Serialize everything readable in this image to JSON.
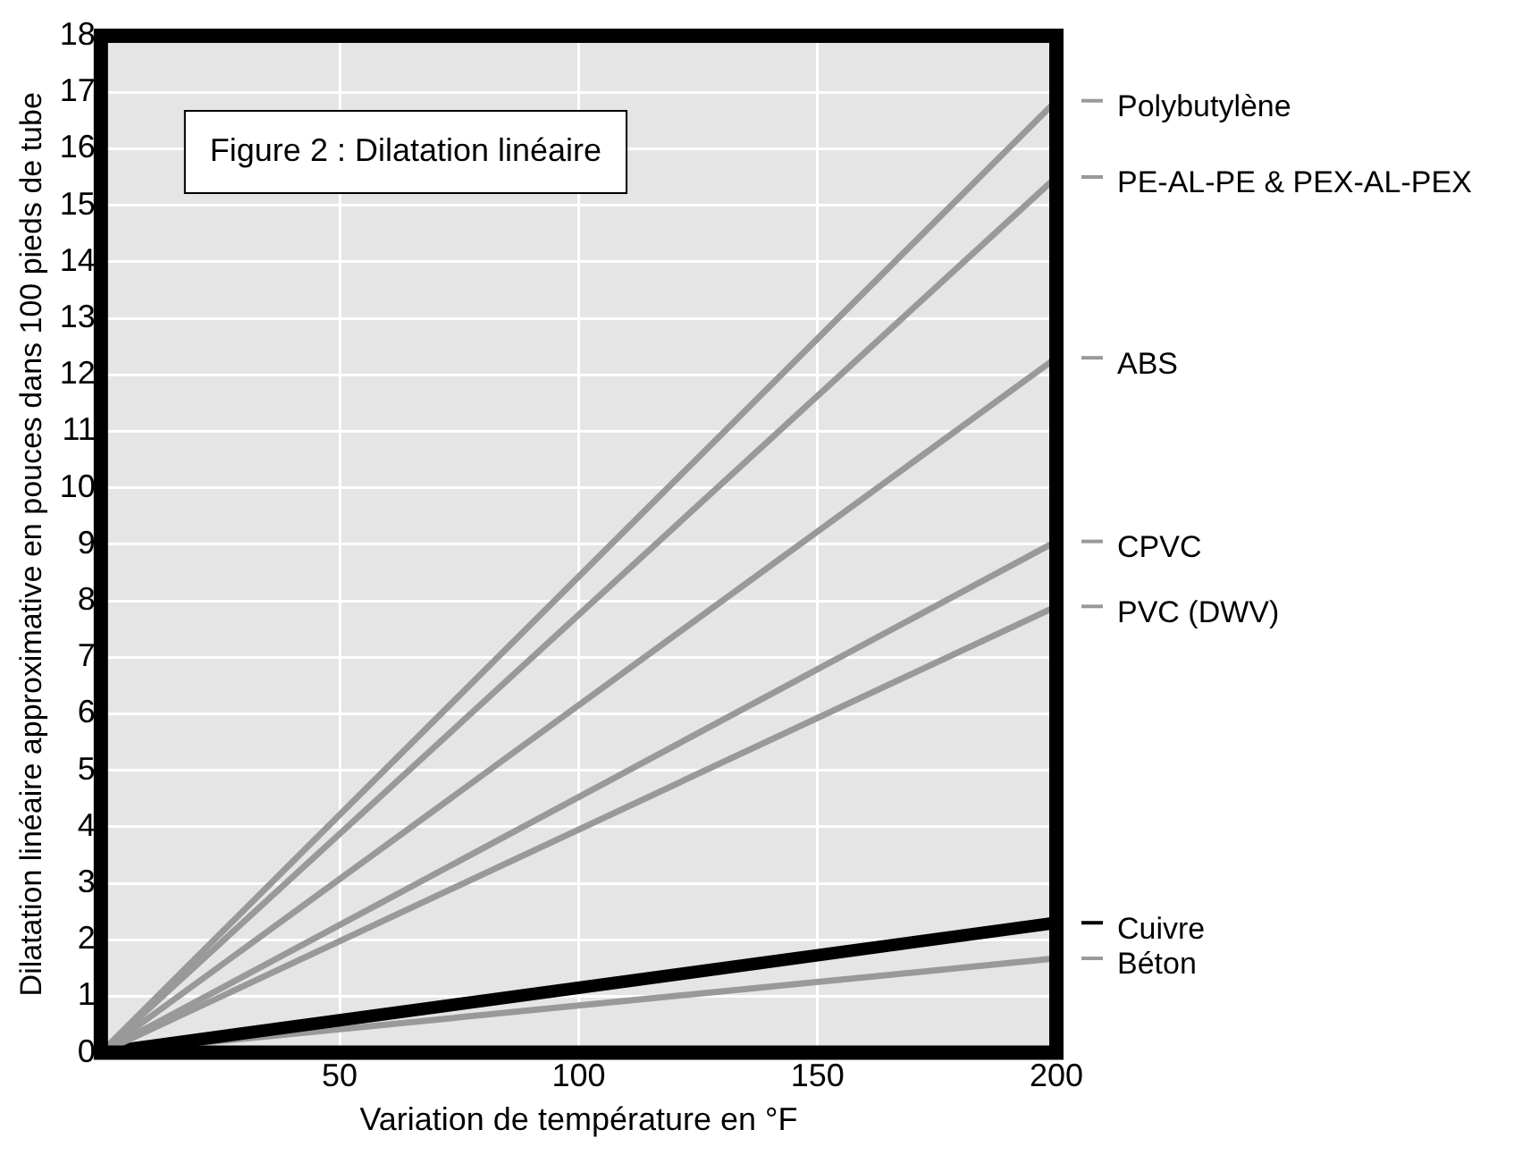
{
  "chart_data": {
    "type": "line",
    "title": "Figure 2 : Dilatation linéaire",
    "xlabel": "Variation de température en °F",
    "ylabel": "Dilatation linéaire approximative en pouces dans 100 pieds de tube",
    "x": [
      0,
      200
    ],
    "series": [
      {
        "name": "Polybutylène",
        "color": "#999999",
        "values": [
          0,
          16.85
        ]
      },
      {
        "name": "PE-AL-PE & PEX-AL-PEX",
        "color": "#999999",
        "values": [
          0,
          15.5
        ]
      },
      {
        "name": "ABS",
        "color": "#999999",
        "values": [
          0,
          12.3
        ]
      },
      {
        "name": "CPVC",
        "color": "#999999",
        "values": [
          0,
          9.05
        ]
      },
      {
        "name": "PVC (DWV)",
        "color": "#999999",
        "values": [
          0,
          7.9
        ]
      },
      {
        "name": "Cuivre",
        "color": "#000000",
        "values": [
          0,
          2.3
        ]
      },
      {
        "name": "Béton",
        "color": "#999999",
        "values": [
          0,
          1.67
        ]
      }
    ],
    "xlim": [
      0,
      200
    ],
    "xticks": [
      50,
      100,
      150,
      200
    ],
    "ylim": [
      0,
      18
    ],
    "yticks": [
      0,
      1,
      2,
      3,
      4,
      5,
      6,
      7,
      8,
      9,
      10,
      11,
      12,
      13,
      14,
      15,
      16,
      17,
      18
    ],
    "grid": true,
    "legend": "right",
    "marker": "none",
    "line_style": "solid"
  }
}
